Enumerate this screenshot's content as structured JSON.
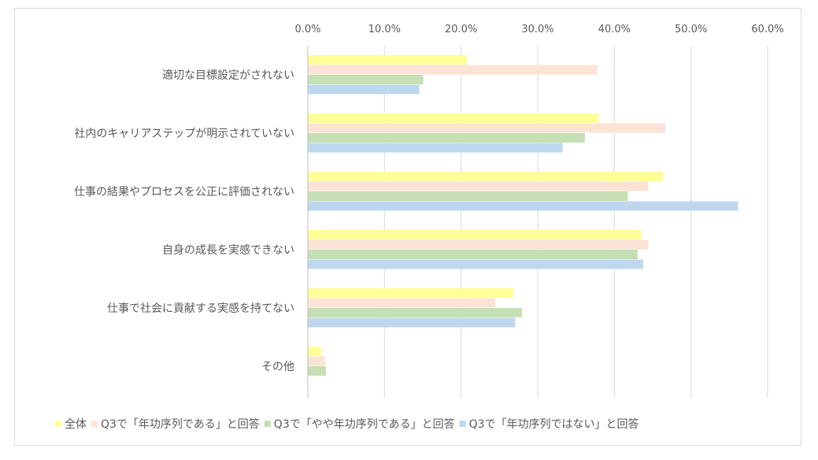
{
  "chart_data": {
    "type": "bar",
    "orientation": "horizontal",
    "x_axis_position": "top",
    "grid": true,
    "legend_position": "bottom",
    "xlim": [
      0,
      60
    ],
    "xticks": [
      "0.0%",
      "10.0%",
      "20.0%",
      "30.0%",
      "40.0%",
      "50.0%",
      "60.0%"
    ],
    "categories": [
      "適切な目標設定がされない",
      "社内のキャリアステップが明示されていない",
      "仕事の結果やプロセスを公正に評価されない",
      "自身の成長を実感できない",
      "仕事で社会に貢献する実感を持てない",
      "その他"
    ],
    "series": [
      {
        "name": "全体",
        "color": "#ffff99",
        "values": [
          20.7,
          37.9,
          46.3,
          43.5,
          26.8,
          1.7
        ]
      },
      {
        "name": "Q3で「年功序列である」と回答",
        "color": "#fbe3d6",
        "values": [
          37.7,
          46.6,
          44.4,
          44.4,
          24.4,
          2.2
        ]
      },
      {
        "name": "Q3で「やや年功序列である」と回答",
        "color": "#c5e0b4",
        "values": [
          15.0,
          36.1,
          41.7,
          43.0,
          27.9,
          2.3
        ]
      },
      {
        "name": "Q3で「年功序列ではない」と回答",
        "color": "#bdd7ee",
        "values": [
          14.5,
          33.2,
          56.1,
          43.7,
          27.0,
          0.0
        ]
      }
    ]
  }
}
